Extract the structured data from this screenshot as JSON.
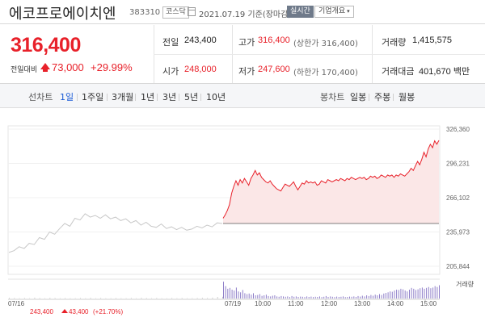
{
  "header": {
    "name": "에코프로에이치엔",
    "code": "383310",
    "market": "코스닥",
    "date_text": "2021.07.19 기준(장마감)",
    "realtime_label": "실시간",
    "company_label": "기업개요",
    "company_arrow": "▾"
  },
  "price": {
    "current": "316,400",
    "change_label": "전일대비",
    "change_value": "73,000",
    "change_pct": "+29.99%",
    "direction": "up"
  },
  "stats": {
    "prev_close": {
      "label": "전일",
      "value": "243,400"
    },
    "high": {
      "label": "고가",
      "value": "316,400",
      "sub": "(상한가 316,400)"
    },
    "volume": {
      "label": "거래량",
      "value": "1,415,575"
    },
    "open": {
      "label": "시가",
      "value": "248,000"
    },
    "low": {
      "label": "저가",
      "value": "247,600",
      "sub": "(하한가 170,400)"
    },
    "turnover": {
      "label": "거래대금",
      "value": "401,670 백만"
    }
  },
  "period_bar": {
    "line_label": "선차트",
    "periods": [
      "1일",
      "1주일",
      "3개월",
      "1년",
      "3년",
      "5년",
      "10년"
    ],
    "selected": "1일",
    "candle_label": "봉차트",
    "candle_periods": [
      "일봉",
      "주봉",
      "월봉"
    ]
  },
  "colors": {
    "up": "#e8212a",
    "line_past": "#c8c8c8",
    "fill_today": "#fbe7e7",
    "volume_today": "#8f7fc9",
    "volume_past": "#c4c4c4"
  },
  "chart_data": {
    "type": "line",
    "y_ticks": [
      "326,360",
      "296,231",
      "266,102",
      "235,973",
      "205,844"
    ],
    "ylim": [
      205844,
      326360
    ],
    "x_tick_labels": [
      "07/16",
      "07/19",
      "10:00",
      "11:00",
      "12:00",
      "13:00",
      "14:00",
      "15:00"
    ],
    "volume_label": "거래량",
    "baseline": 243400,
    "prev_day": {
      "date": "07/16",
      "close": "243,400",
      "change": "43,400",
      "change_pct": "(+21.70%)",
      "series": [
        218000,
        219500,
        223000,
        221500,
        226000,
        225000,
        231000,
        229500,
        236000,
        234000,
        239000,
        243500,
        241000,
        248000,
        246500,
        252000,
        249000,
        250500,
        248000,
        251000,
        247500,
        249000,
        246000,
        247500,
        244000,
        246000,
        242000,
        244500,
        241000,
        240000,
        243000,
        239000,
        240500,
        238000,
        240000,
        237500,
        238500,
        241000,
        239500,
        242000,
        240500,
        244000,
        243400
      ]
    },
    "today": {
      "date": "07/19",
      "series": [
        248000,
        251000,
        255000,
        260000,
        270000,
        276000,
        281000,
        277000,
        282000,
        279000,
        283000,
        280000,
        277000,
        283000,
        286000,
        290000,
        286000,
        288000,
        284000,
        282000,
        280000,
        279000,
        281000,
        278000,
        276000,
        274000,
        273000,
        272000,
        275000,
        278000,
        277000,
        276000,
        278000,
        280000,
        276000,
        273000,
        276000,
        279000,
        278000,
        281000,
        279000,
        280000,
        279000,
        280000,
        277000,
        278000,
        281000,
        280000,
        279000,
        282000,
        281000,
        280000,
        281000,
        282000,
        281000,
        283000,
        282000,
        281000,
        283000,
        282000,
        284000,
        283000,
        282000,
        283000,
        284000,
        283000,
        284000,
        282000,
        283000,
        285000,
        284000,
        285000,
        283000,
        284000,
        286000,
        285000,
        284000,
        286000,
        285000,
        286000,
        284000,
        286000,
        285000,
        287000,
        286000,
        285000,
        287000,
        289000,
        292000,
        290000,
        294000,
        298000,
        295000,
        300000,
        306000,
        302000,
        309000,
        313000,
        310000,
        316000,
        313000,
        316400
      ]
    },
    "volume": {
      "prev_day": [
        4,
        3,
        2,
        3,
        2,
        5,
        3,
        2,
        4,
        3,
        2,
        3,
        2,
        2,
        3,
        2,
        4,
        2,
        3,
        2,
        2,
        3,
        2,
        2,
        3,
        2,
        4,
        3,
        2,
        3,
        2,
        2,
        3,
        2,
        3,
        2,
        2,
        3,
        4,
        3,
        5,
        8,
        10
      ],
      "today": [
        95,
        70,
        55,
        60,
        50,
        45,
        62,
        40,
        35,
        48,
        30,
        25,
        28,
        22,
        30,
        18,
        20,
        25,
        15,
        18,
        22,
        14,
        12,
        16,
        18,
        12,
        10,
        14,
        12,
        10,
        12,
        8,
        14,
        10,
        12,
        9,
        11,
        10,
        8,
        12,
        9,
        11,
        8,
        10,
        9,
        12,
        8,
        10,
        14,
        9,
        12,
        10,
        8,
        11,
        9,
        10,
        12,
        8,
        9,
        11,
        10,
        12,
        9,
        14,
        11,
        16,
        12,
        18,
        14,
        20,
        16,
        22,
        18,
        25,
        20,
        28,
        32,
        35,
        40,
        38,
        45,
        50,
        48,
        55,
        52,
        45,
        40,
        50,
        60,
        55,
        48,
        52,
        58,
        62,
        55,
        60,
        65,
        58,
        62,
        70,
        65,
        75
      ]
    }
  }
}
